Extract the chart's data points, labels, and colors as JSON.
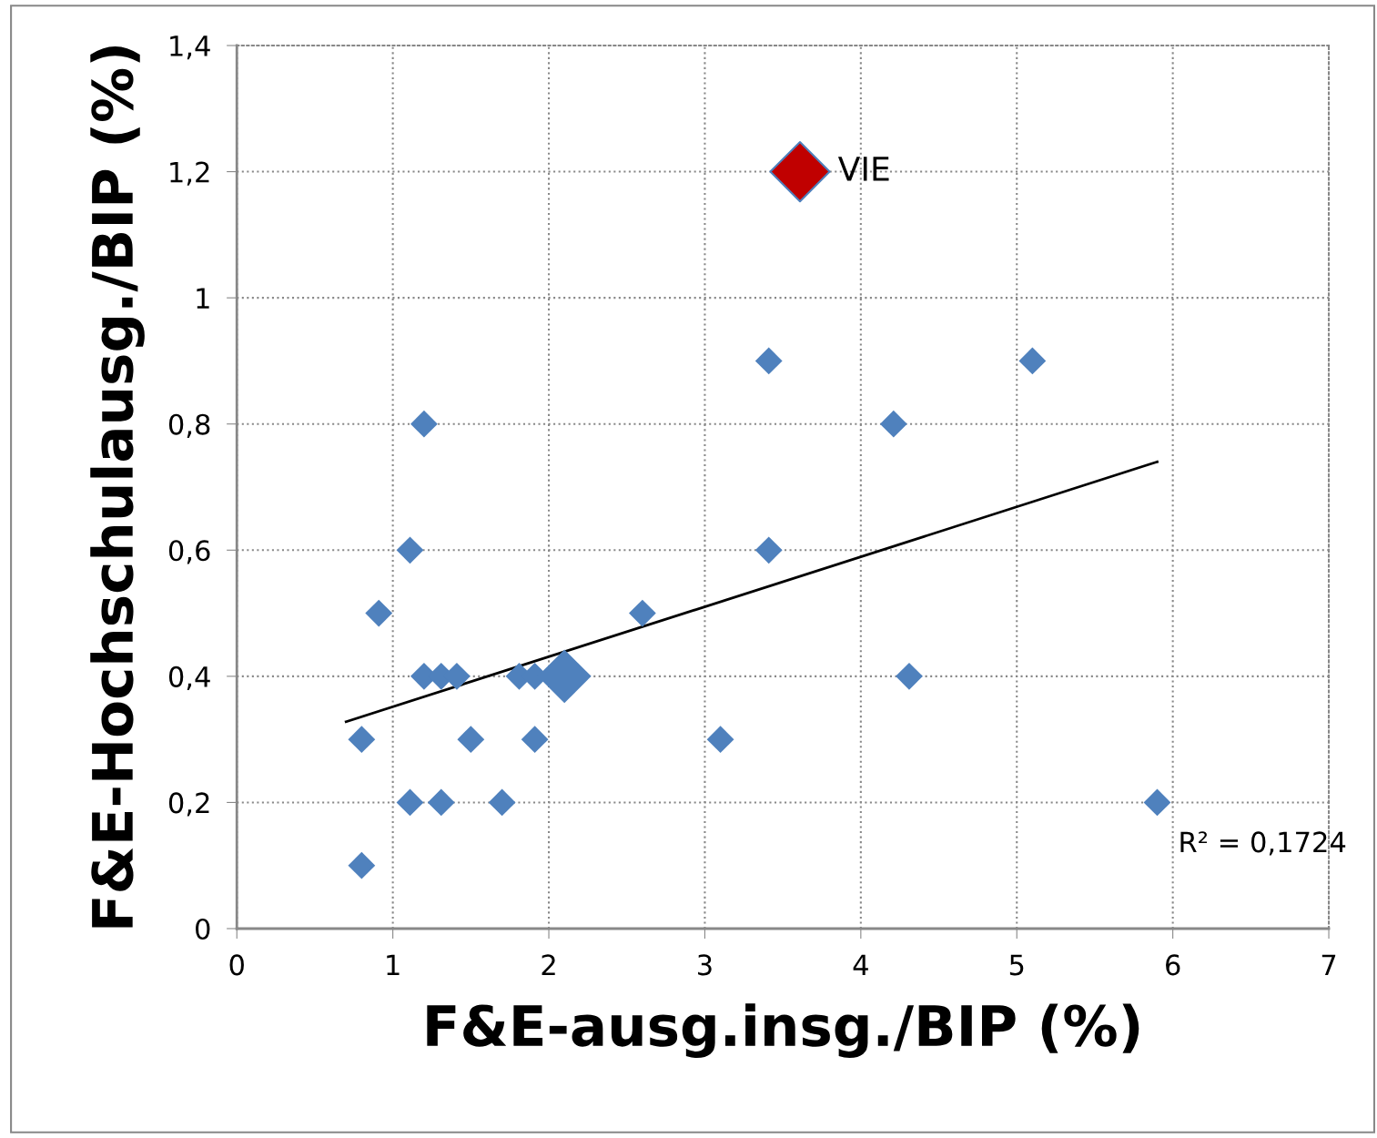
{
  "chart_data": {
    "type": "scatter",
    "xlabel": "F&E-ausg.insg./BIP (%)",
    "ylabel": "F&E-Hochschulausg./BIP (%)",
    "xlim": [
      0,
      7
    ],
    "xticks": [
      0,
      1,
      2,
      3,
      4,
      5,
      6,
      7
    ],
    "ylim": [
      0,
      1.4
    ],
    "yticks": [
      0,
      {
        "value": 0.2,
        "label": "0,2"
      },
      {
        "value": 0.4,
        "label": "0,4"
      },
      {
        "value": 0.6,
        "label": "0,6"
      },
      {
        "value": 0.8,
        "label": "0,8"
      },
      1,
      {
        "value": 1.2,
        "label": "1,2"
      },
      {
        "value": 1.4,
        "label": "1,4"
      }
    ],
    "grid": true,
    "marker": "diamond",
    "legend": false,
    "series": [
      {
        "color": "#4f81bd",
        "x": [
          0.8,
          0.8,
          0.91,
          1.11,
          1.2,
          1.2,
          1.31,
          1.41,
          1.11,
          1.31,
          1.5,
          1.7,
          1.81,
          1.91,
          1.91,
          2.6,
          3.1,
          3.41,
          3.41,
          4.21,
          4.31,
          5.1,
          5.9
        ],
        "values": [
          0.1,
          0.3,
          0.5,
          0.6,
          0.8,
          0.4,
          0.4,
          0.4,
          0.2,
          0.2,
          0.3,
          0.2,
          0.4,
          0.4,
          0.3,
          0.5,
          0.3,
          0.9,
          0.6,
          0.8,
          0.4,
          0.9,
          0.2
        ]
      },
      {
        "color": "#4f81bd",
        "x": [
          2.1
        ],
        "values": [
          0.4
        ]
      },
      {
        "name": "VIE",
        "color": "#c00000",
        "x": [
          3.61
        ],
        "values": [
          1.2
        ]
      },
      {
        "type": "line",
        "marker": "none",
        "color": "#000000",
        "x": [
          0.7,
          5.9
        ],
        "values": [
          0.328,
          0.74
        ]
      }
    ],
    "annotations": [
      "R² = 0,1724"
    ]
  }
}
